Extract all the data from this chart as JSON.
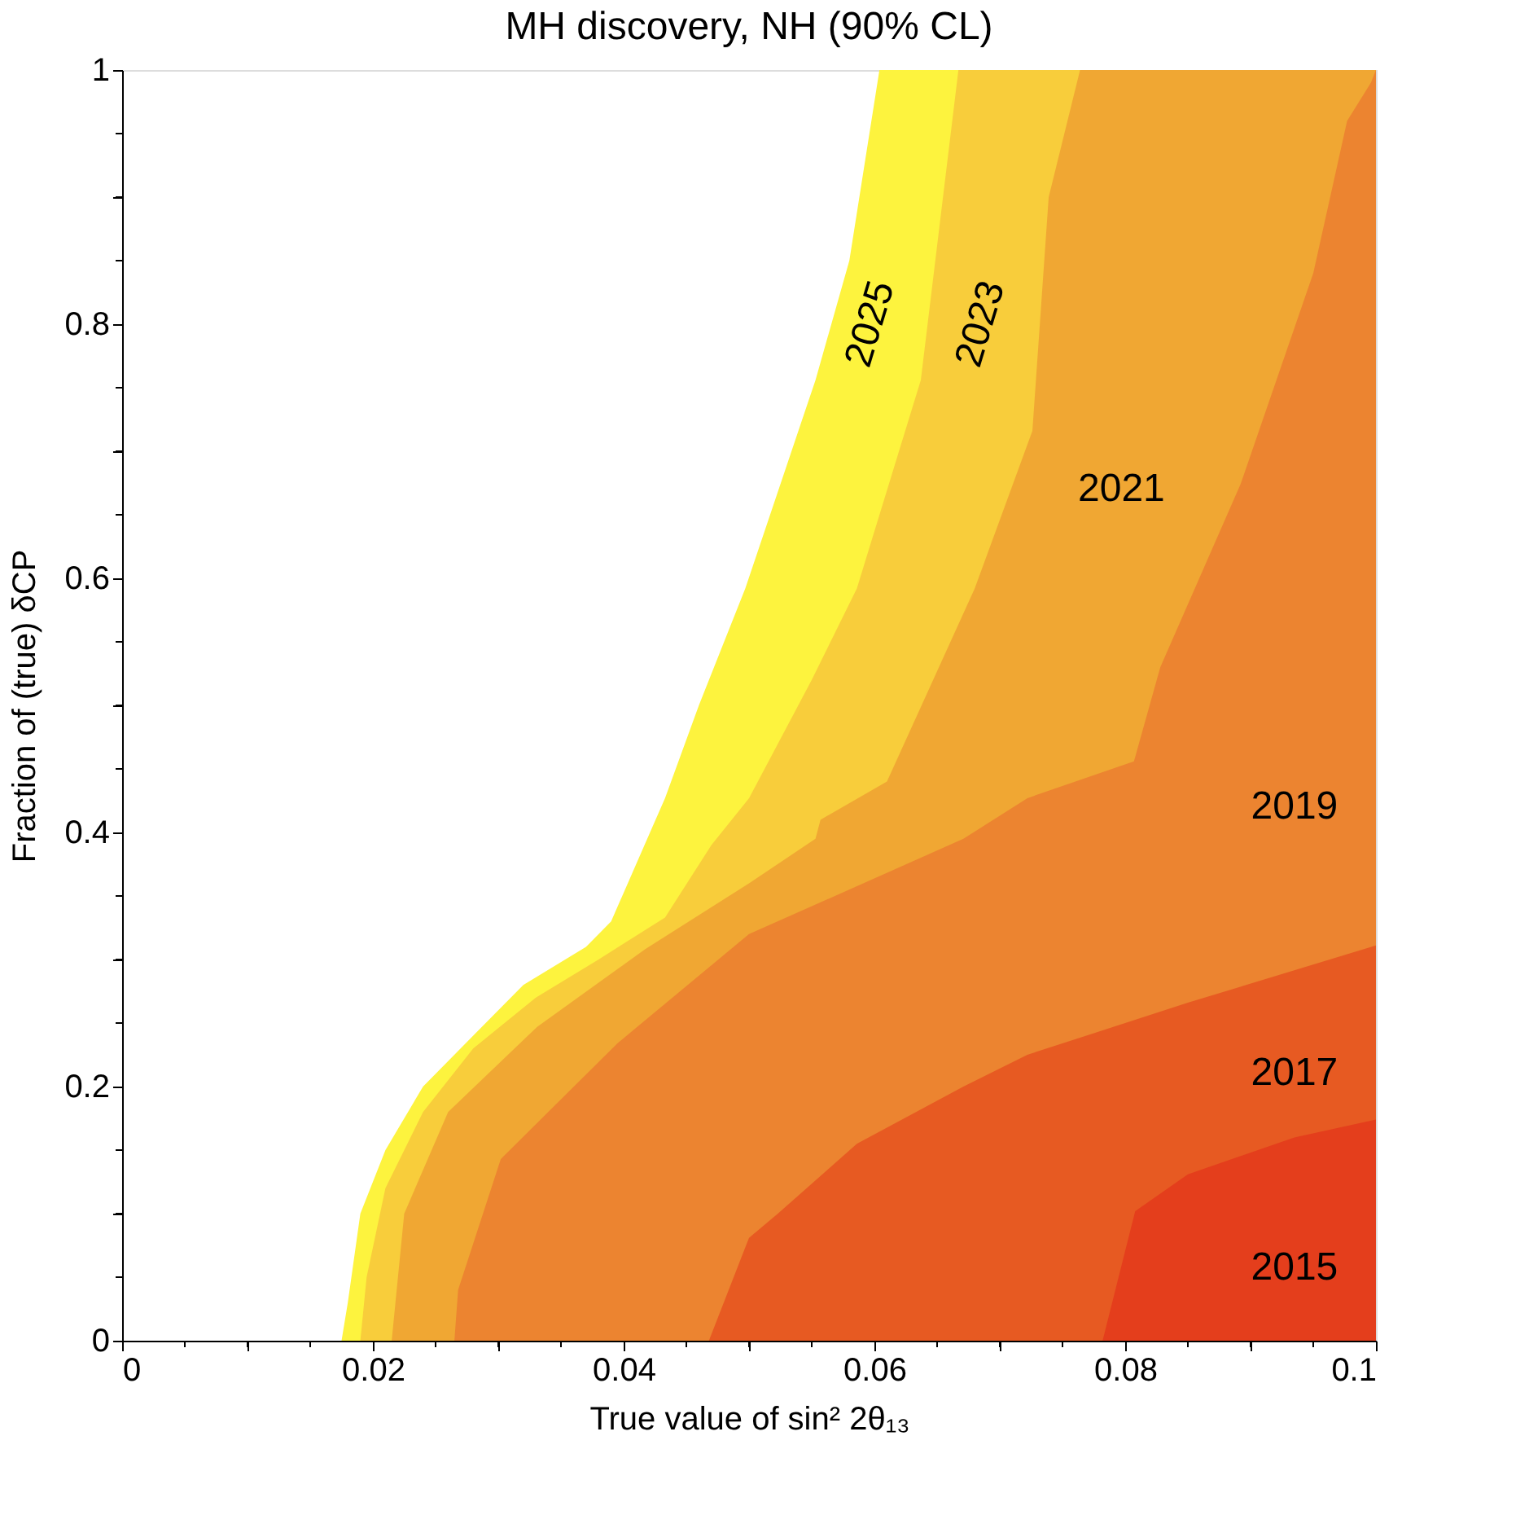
{
  "chart_data": {
    "type": "area",
    "title": "MH discovery, NH (90% CL)",
    "xlabel": "True value of sin² 2θ₁₃",
    "ylabel": "Fraction of (true) δCP",
    "series": [
      {
        "color": "#fdf33e",
        "x": [
          0.0175,
          0.018,
          0.019,
          0.021,
          0.024,
          0.028,
          0.032,
          0.037,
          0.039,
          0.0433,
          0.046,
          0.0497,
          0.0553,
          0.058,
          0.0604,
          0.1
        ],
        "values": [
          0,
          0.03,
          0.1,
          0.15,
          0.2,
          0.24,
          0.28,
          0.31,
          0.33,
          0.427,
          0.5,
          0.592,
          0.756,
          0.85,
          1,
          1
        ]
      },
      {
        "color": "#f8cd3b",
        "x": [
          0.019,
          0.0195,
          0.021,
          0.024,
          0.028,
          0.033,
          0.038,
          0.0433,
          0.047,
          0.05,
          0.055,
          0.0586,
          0.0637,
          0.0667,
          0.1
        ],
        "values": [
          0,
          0.05,
          0.12,
          0.18,
          0.23,
          0.27,
          0.3,
          0.333,
          0.39,
          0.427,
          0.52,
          0.592,
          0.756,
          1,
          1
        ]
      },
      {
        "color": "#f0a733",
        "x": [
          0.0215,
          0.0225,
          0.026,
          0.0331,
          0.0417,
          0.05,
          0.0553,
          0.0557,
          0.061,
          0.068,
          0.0726,
          0.0739,
          0.0764,
          0.1
        ],
        "values": [
          0,
          0.1,
          0.18,
          0.247,
          0.308,
          0.36,
          0.395,
          0.41,
          0.44,
          0.592,
          0.716,
          0.9,
          1,
          1
        ]
      },
      {
        "color": "#ec8430",
        "x": [
          0.0265,
          0.0268,
          0.0302,
          0.0395,
          0.05,
          0.0671,
          0.0722,
          0.0807,
          0.0828,
          0.0892,
          0.095,
          0.0977,
          0.0996,
          0.1
        ],
        "values": [
          0,
          0.04,
          0.143,
          0.234,
          0.32,
          0.395,
          0.427,
          0.456,
          0.53,
          0.674,
          0.84,
          0.96,
          0.99,
          1
        ]
      },
      {
        "color": "#e75a22",
        "x": [
          0.0468,
          0.05,
          0.0523,
          0.0586,
          0.0671,
          0.0722,
          0.085,
          0.1
        ],
        "values": [
          0,
          0.081,
          0.1,
          0.155,
          0.2,
          0.225,
          0.266,
          0.311
        ]
      },
      {
        "color": "#e43e1c",
        "x": [
          0.0782,
          0.0808,
          0.085,
          0.0935,
          0.1
        ],
        "values": [
          0,
          0.102,
          0.131,
          0.16,
          0.174
        ]
      }
    ],
    "annotations": [
      "2025",
      "2023",
      "2021",
      "2019",
      "2017",
      "2015"
    ],
    "xlim": [
      0,
      0.1
    ],
    "ylim": [
      0,
      1
    ],
    "xticks": [
      0,
      {
        "value": 0.005,
        "label": null
      },
      {
        "value": 0.01,
        "label": null
      },
      {
        "value": 0.015,
        "label": null
      },
      0.02,
      {
        "value": 0.025,
        "label": null
      },
      {
        "value": 0.03,
        "label": null
      },
      {
        "value": 0.035,
        "label": null
      },
      0.04,
      {
        "value": 0.045,
        "label": null
      },
      {
        "value": 0.05,
        "label": null
      },
      {
        "value": 0.055,
        "label": null
      },
      0.06,
      {
        "value": 0.065,
        "label": null
      },
      {
        "value": 0.07,
        "label": null
      },
      {
        "value": 0.075,
        "label": null
      },
      0.08,
      {
        "value": 0.085,
        "label": null
      },
      {
        "value": 0.09,
        "label": null
      },
      {
        "value": 0.095,
        "label": null
      },
      0.1
    ],
    "yticks": [
      0,
      {
        "value": 0.05,
        "label": null
      },
      {
        "value": 0.1,
        "label": null
      },
      {
        "value": 0.15,
        "label": null
      },
      0.2,
      {
        "value": 0.25,
        "label": null
      },
      {
        "value": 0.3,
        "label": null
      },
      {
        "value": 0.35,
        "label": null
      },
      0.4,
      {
        "value": 0.45,
        "label": null
      },
      {
        "value": 0.5,
        "label": null
      },
      {
        "value": 0.55,
        "label": null
      },
      0.6,
      {
        "value": 0.65,
        "label": null
      },
      {
        "value": 0.7,
        "label": null
      },
      {
        "value": 0.75,
        "label": null
      },
      0.8,
      {
        "value": 0.85,
        "label": null
      },
      {
        "value": 0.9,
        "label": null
      },
      {
        "value": 0.95,
        "label": null
      },
      1
    ],
    "grid": false
  }
}
